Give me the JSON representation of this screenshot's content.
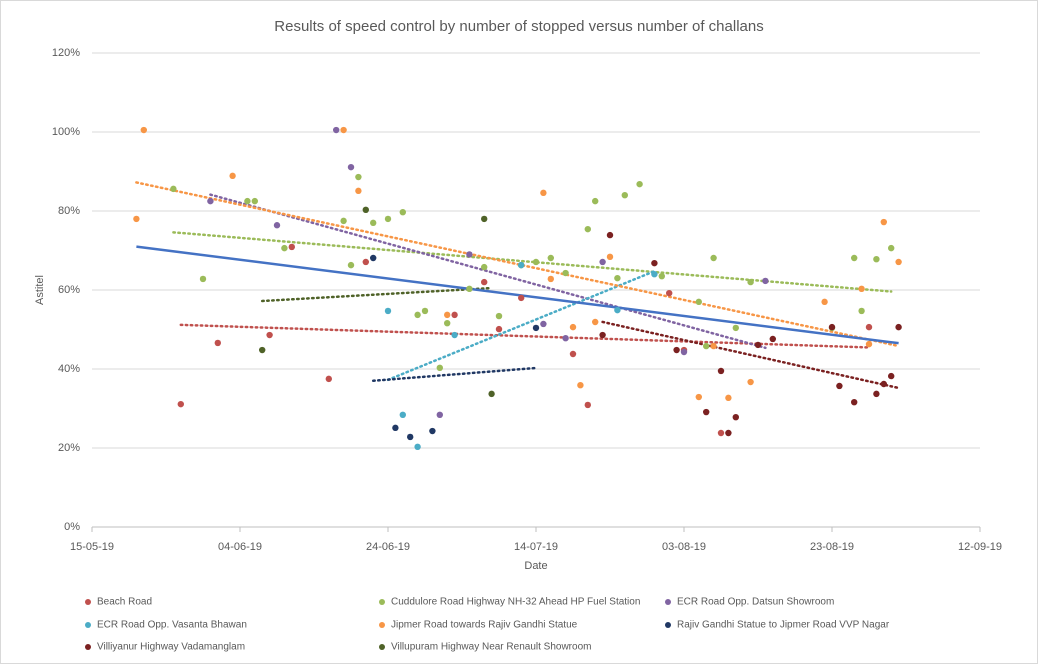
{
  "chart_data": {
    "type": "scatter",
    "title": "Results of speed control by number of stopped versus number of challans",
    "x_label": "Date",
    "y_label": "Astitel",
    "xlim": [
      "2019-05-15",
      "2019-09-12"
    ],
    "xticks": [
      {
        "value": "2019-05-15",
        "label": "15-05-19"
      },
      {
        "value": "2019-06-04",
        "label": "04-06-19"
      },
      {
        "value": "2019-06-24",
        "label": "24-06-19"
      },
      {
        "value": "2019-07-14",
        "label": "14-07-19"
      },
      {
        "value": "2019-08-03",
        "label": "03-08-19"
      },
      {
        "value": "2019-08-23",
        "label": "23-08-19"
      },
      {
        "value": "2019-09-12",
        "label": "12-09-19"
      }
    ],
    "ylim": [
      0,
      120
    ],
    "yticks": [
      {
        "value": 0,
        "label": "0%"
      },
      {
        "value": 20,
        "label": "20%"
      },
      {
        "value": 40,
        "label": "40%"
      },
      {
        "value": 60,
        "label": "60%"
      },
      {
        "value": 80,
        "label": "80%"
      },
      {
        "value": 100,
        "label": "100%"
      },
      {
        "value": 120,
        "label": "120%"
      }
    ],
    "grid": true,
    "trendlines": true,
    "trendline_color": "#4472c4",
    "legend": "bottom",
    "series": [
      {
        "name": "Beach Road",
        "color": "#c0504d",
        "x": [
          "2019-05-27",
          "2019-06-01",
          "2019-06-08",
          "2019-06-11",
          "2019-06-16",
          "2019-06-21",
          "2019-07-03",
          "2019-07-07",
          "2019-07-09",
          "2019-07-12",
          "2019-07-19",
          "2019-07-21",
          "2019-08-01",
          "2019-08-03",
          "2019-08-08",
          "2019-08-28"
        ],
        "values": [
          31.1,
          46.6,
          48.6,
          70.9,
          37.5,
          67.1,
          53.7,
          62,
          50.1,
          58,
          43.8,
          30.9,
          59.2,
          44.8,
          23.8,
          50.6
        ]
      },
      {
        "name": "Cuddulore Road Highway NH-32 Ahead HP Fuel Station",
        "color": "#9bbb59",
        "x": [
          "2019-05-26",
          "2019-05-30",
          "2019-06-05",
          "2019-06-06",
          "2019-06-10",
          "2019-06-18",
          "2019-06-19",
          "2019-06-20",
          "2019-06-22",
          "2019-06-24",
          "2019-06-26",
          "2019-06-28",
          "2019-06-29",
          "2019-07-01",
          "2019-07-02",
          "2019-07-05",
          "2019-07-07",
          "2019-07-09",
          "2019-07-12",
          "2019-07-14",
          "2019-07-16",
          "2019-07-18",
          "2019-07-21",
          "2019-07-22",
          "2019-07-25",
          "2019-07-26",
          "2019-07-28",
          "2019-07-31",
          "2019-08-05",
          "2019-08-06",
          "2019-08-07",
          "2019-08-10",
          "2019-08-12",
          "2019-08-23",
          "2019-08-26",
          "2019-08-27",
          "2019-08-29",
          "2019-08-31"
        ],
        "values": [
          85.6,
          62.8,
          82.5,
          82.5,
          70.6,
          77.5,
          66.3,
          88.6,
          77,
          78,
          79.7,
          53.7,
          54.7,
          40.3,
          51.6,
          60.3,
          65.8,
          53.4,
          66.3,
          67.1,
          68.1,
          64.3,
          75.4,
          82.5,
          63,
          84,
          86.8,
          63.5,
          57,
          45.8,
          68.1,
          50.4,
          62,
          50.4,
          68.1,
          54.7,
          67.8,
          70.6
        ]
      },
      {
        "name": "ECR Road Opp. Datsun Showroom",
        "color": "#8064a2",
        "x": [
          "2019-05-31",
          "2019-06-09",
          "2019-06-17",
          "2019-06-19",
          "2019-07-01",
          "2019-07-05",
          "2019-07-15",
          "2019-07-18",
          "2019-07-23",
          "2019-08-03",
          "2019-08-14"
        ],
        "values": [
          82.5,
          76.4,
          100.5,
          91.1,
          28.4,
          69,
          51.4,
          47.8,
          67.1,
          44.3,
          62.3
        ]
      },
      {
        "name": "ECR Road Opp. Vasanta Bhawan",
        "color": "#4bacc6",
        "x": [
          "2019-06-24",
          "2019-06-26",
          "2019-06-28",
          "2019-07-03",
          "2019-07-12",
          "2019-07-25",
          "2019-07-30"
        ],
        "values": [
          54.7,
          28.4,
          20.3,
          48.6,
          66.3,
          54.9,
          64
        ]
      },
      {
        "name": "Jipmer Road towards Rajiv Gandhi Statue",
        "color": "#f79646",
        "x": [
          "2019-05-21",
          "2019-05-22",
          "2019-06-03",
          "2019-06-18",
          "2019-06-20",
          "2019-07-02",
          "2019-07-15",
          "2019-07-16",
          "2019-07-19",
          "2019-07-20",
          "2019-07-22",
          "2019-07-24",
          "2019-08-05",
          "2019-08-07",
          "2019-08-09",
          "2019-08-12",
          "2019-08-22",
          "2019-08-27",
          "2019-08-28",
          "2019-08-30",
          "2019-09-01"
        ],
        "values": [
          78,
          100.5,
          88.9,
          100.5,
          85.1,
          53.7,
          84.6,
          62.8,
          50.6,
          35.9,
          51.9,
          68.4,
          32.9,
          45.8,
          32.7,
          36.7,
          57,
          60.3,
          46.3,
          77.2,
          67.1
        ]
      },
      {
        "name": "Rajiv Gandhi Statue to Jipmer Road VVP Nagar",
        "color": "#203864",
        "x": [
          "2019-06-22",
          "2019-06-25",
          "2019-06-27",
          "2019-06-30",
          "2019-07-14"
        ],
        "values": [
          68.1,
          25.1,
          22.8,
          24.3,
          50.4
        ]
      },
      {
        "name": "Villiyanur Highway Vadamanglam",
        "color": "#7b2121",
        "x": [
          "2019-07-23",
          "2019-07-24",
          "2019-07-30",
          "2019-08-02",
          "2019-08-06",
          "2019-08-08",
          "2019-08-09",
          "2019-08-10",
          "2019-08-13",
          "2019-08-15",
          "2019-08-23",
          "2019-08-24",
          "2019-08-26",
          "2019-08-29",
          "2019-08-30",
          "2019-08-31",
          "2019-09-01"
        ],
        "values": [
          48.6,
          73.9,
          66.8,
          44.8,
          29.1,
          39.5,
          23.8,
          27.8,
          46.1,
          47.6,
          50.6,
          35.7,
          31.6,
          33.7,
          36.2,
          38.2,
          50.6
        ]
      },
      {
        "name": "Villupuram Highway Near Renault Showroom",
        "color": "#4f6228",
        "x": [
          "2019-06-07",
          "2019-06-21",
          "2019-07-07",
          "2019-07-08"
        ],
        "values": [
          44.8,
          80.3,
          78,
          33.7
        ]
      }
    ]
  }
}
